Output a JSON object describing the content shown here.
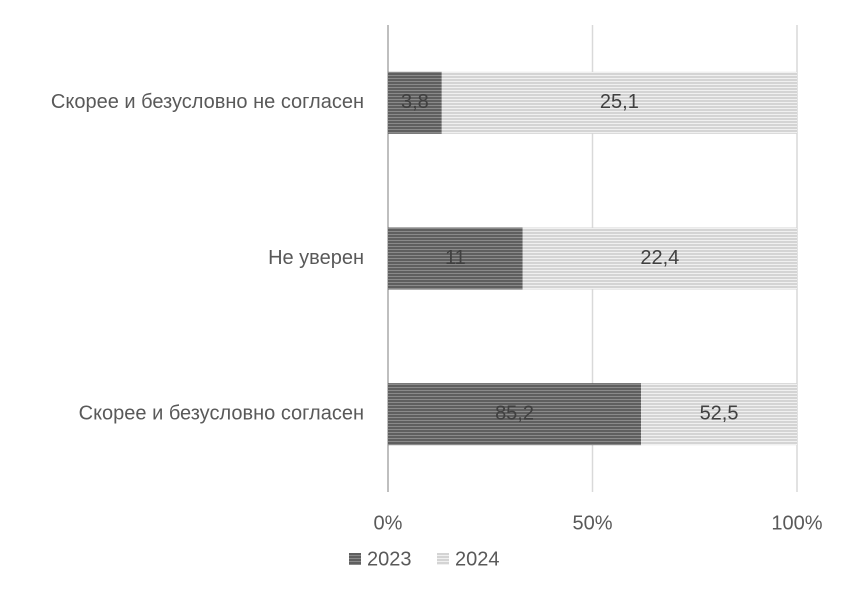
{
  "chart_data": {
    "type": "stacked-percent-bar",
    "categories": [
      "Скорее и безусловно не согласен",
      "Не уверен",
      "Скорее и безусловно согласен"
    ],
    "series": [
      {
        "name": "2023",
        "color": "#5f5f5f",
        "values": [
          3.8,
          11,
          85.2
        ],
        "value_labels": [
          "3,8",
          "11",
          "85,2"
        ]
      },
      {
        "name": "2024",
        "color": "#d4d4d4",
        "values": [
          25.1,
          22.4,
          52.5
        ],
        "value_labels": [
          "25,1",
          "22,4",
          "52,5"
        ]
      }
    ],
    "xlim": [
      0,
      100
    ],
    "xticks": [
      {
        "value": 0,
        "label": "0%"
      },
      {
        "value": 50,
        "label": "50%"
      },
      {
        "value": 100,
        "label": "100%"
      }
    ],
    "grid": true,
    "legend": "bottom"
  }
}
